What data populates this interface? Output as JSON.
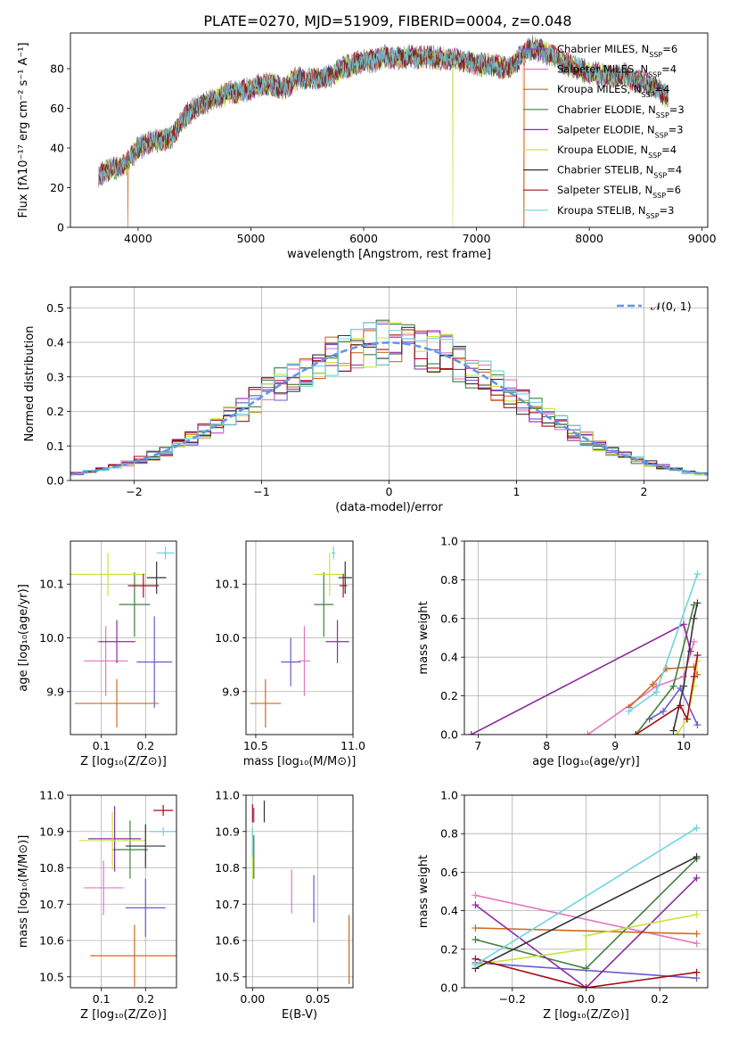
{
  "figure_title": "PLATE=0270, MJD=51909, FIBERID=0004, z=0.048",
  "colors": {
    "axis": "#000000",
    "grid": "#b0b0b0",
    "normal_curve": "#6495ed",
    "models": [
      "#6a5acd",
      "#e377c2",
      "#d2691e",
      "#3f7f3f",
      "#8e2ca0",
      "#c8e340",
      "#333333",
      "#a50f15",
      "#6fd4e0"
    ]
  },
  "chart_data": [
    {
      "id": "spectrum",
      "type": "line",
      "xlabel": "wavelength [Angstrom, rest frame]",
      "ylabel": "Flux [fλ10⁻¹⁷ erg cm⁻² s⁻¹ A⁻¹]",
      "xlim": [
        3400,
        9050
      ],
      "ylim": [
        0,
        98
      ],
      "xticks": [
        4000,
        5000,
        6000,
        7000,
        8000,
        9000
      ],
      "yticks": [
        0,
        20,
        40,
        60,
        80
      ],
      "grid": false,
      "legend_position": "right",
      "legend": [
        "Chabrier MILES, N_SSP=6",
        "Salpeter MILES, N_SSP=4",
        "Kroupa MILES, N_SSP=4",
        "Chabrier ELODIE, N_SSP=3",
        "Salpeter ELODIE, N_SSP=3",
        "Kroupa ELODIE, N_SSP=4",
        "Chabrier STELIB, N_SSP=4",
        "Salpeter STELIB, N_SSP=6",
        "Kroupa STELIB, N_SSP=3"
      ],
      "continuum": {
        "x": [
          3650,
          3700,
          3800,
          3900,
          4000,
          4100,
          4200,
          4300,
          4400,
          4500,
          4600,
          4700,
          4800,
          4900,
          5000,
          5100,
          5200,
          5300,
          5400,
          5500,
          5600,
          5700,
          5800,
          5900,
          6000,
          6100,
          6200,
          6300,
          6400,
          6500,
          6600,
          6700,
          6800,
          6900,
          7000,
          7100,
          7200,
          7300,
          7400,
          7500,
          7600,
          7700,
          7800,
          7900,
          8000,
          8100,
          8200,
          8300,
          8400,
          8500,
          8600,
          8700
        ],
        "y": [
          25,
          28,
          30,
          32,
          40,
          43,
          44,
          45,
          55,
          60,
          63,
          65,
          68,
          68,
          70,
          72,
          72,
          70,
          75,
          75,
          75,
          76,
          80,
          82,
          84,
          84,
          86,
          85,
          86,
          86,
          86,
          85,
          85,
          84,
          82,
          82,
          81,
          80,
          87,
          91,
          88,
          86,
          82,
          80,
          78,
          77,
          76,
          77,
          74,
          73,
          70,
          65
        ]
      },
      "dropouts": [
        {
          "x": 3910,
          "series": "Kroupa MILES"
        },
        {
          "x": 6790,
          "series": "Kroupa ELODIE"
        },
        {
          "x": 7420,
          "series": "Kroupa MILES"
        }
      ]
    },
    {
      "id": "residual-distribution",
      "type": "line",
      "xlabel": "(data-model)/error",
      "ylabel": "Normed distribution",
      "xlim": [
        -2.5,
        2.5
      ],
      "ylim": [
        0,
        0.56
      ],
      "xticks": [
        -2,
        -1,
        0,
        1,
        2
      ],
      "yticks": [
        0.0,
        0.1,
        0.2,
        0.3,
        0.4,
        0.5
      ],
      "grid": true,
      "legend_position": "top-right",
      "legend": [
        "𝒩(0, 1)"
      ],
      "histogram_bins": 50
    },
    {
      "id": "age-vs-Z",
      "type": "scatter",
      "xlabel": "Z [log₁₀(Z/Z⊙)]",
      "ylabel": "age  [log₁₀(age/yr)]",
      "xlim": [
        0.03,
        0.27
      ],
      "ylim": [
        9.82,
        10.18
      ],
      "xticks": [
        0.1,
        0.2
      ],
      "yticks": [
        9.9,
        10.0,
        10.1
      ],
      "grid": true,
      "points": [
        {
          "x": 0.22,
          "y": 9.955,
          "xerr": 0.04,
          "yerr": 0.085
        },
        {
          "x": 0.11,
          "y": 9.957,
          "xerr": 0.05,
          "yerr": 0.065
        },
        {
          "x": 0.135,
          "y": 9.878,
          "xerr": 0.095,
          "yerr": 0.045
        },
        {
          "x": 0.175,
          "y": 10.062,
          "xerr": 0.035,
          "yerr": 0.06
        },
        {
          "x": 0.135,
          "y": 9.993,
          "xerr": 0.042,
          "yerr": 0.04
        },
        {
          "x": 0.115,
          "y": 10.118,
          "xerr": 0.085,
          "yerr": 0.04
        },
        {
          "x": 0.225,
          "y": 10.112,
          "xerr": 0.022,
          "yerr": 0.03
        },
        {
          "x": 0.195,
          "y": 10.097,
          "xerr": 0.035,
          "yerr": 0.022
        },
        {
          "x": 0.245,
          "y": 10.158,
          "xerr": 0.02,
          "yerr": 0.012
        }
      ]
    },
    {
      "id": "age-vs-mass",
      "type": "scatter",
      "xlabel": "mass [log₁₀(M/M⊙)]",
      "ylabel": "",
      "xlim": [
        10.45,
        11.0
      ],
      "ylim": [
        9.82,
        10.18
      ],
      "xticks": [
        10.5,
        11.0
      ],
      "yticks": [
        9.9,
        10.0,
        10.1
      ],
      "grid": true,
      "points": [
        {
          "x": 10.68,
          "y": 9.955,
          "xerr": 0.05,
          "yerr": 0.045
        },
        {
          "x": 10.75,
          "y": 9.957,
          "xerr": 0.03,
          "yerr": 0.065
        },
        {
          "x": 10.55,
          "y": 9.878,
          "xerr": 0.08,
          "yerr": 0.045
        },
        {
          "x": 10.85,
          "y": 10.062,
          "xerr": 0.05,
          "yerr": 0.06
        },
        {
          "x": 10.92,
          "y": 9.993,
          "xerr": 0.06,
          "yerr": 0.04
        },
        {
          "x": 10.88,
          "y": 10.118,
          "xerr": 0.08,
          "yerr": 0.04
        },
        {
          "x": 10.96,
          "y": 10.112,
          "xerr": 0.035,
          "yerr": 0.03
        },
        {
          "x": 10.95,
          "y": 10.097,
          "xerr": 0.02,
          "yerr": 0.022
        },
        {
          "x": 10.9,
          "y": 10.158,
          "xerr": 0.01,
          "yerr": 0.012
        }
      ]
    },
    {
      "id": "massweight-vs-age",
      "type": "line",
      "xlabel": "age  [log₁₀(age/yr)]",
      "ylabel": "mass weight",
      "xlim": [
        6.8,
        10.35
      ],
      "ylim": [
        0,
        1.0
      ],
      "xticks": [
        7,
        8,
        9,
        10
      ],
      "yticks": [
        0.0,
        0.2,
        0.4,
        0.6,
        0.8,
        1.0
      ],
      "grid": true,
      "series": [
        {
          "x": [
            9.5,
            9.7,
            9.95,
            10.2
          ],
          "y": [
            0.08,
            0.12,
            0.24,
            0.05
          ]
        },
        {
          "x": [
            8.6,
            9.6,
            10.0,
            10.15
          ],
          "y": [
            0.0,
            0.25,
            0.3,
            0.48
          ]
        },
        {
          "x": [
            9.2,
            9.55,
            9.75,
            10.15,
            10.2
          ],
          "y": [
            0.14,
            0.26,
            0.34,
            0.35,
            0.31
          ]
        },
        {
          "x": [
            9.3,
            9.85,
            10.15
          ],
          "y": [
            0.0,
            0.25,
            0.67
          ]
        },
        {
          "x": [
            6.9,
            10.0,
            10.1
          ],
          "y": [
            0.0,
            0.57,
            0.43
          ]
        },
        {
          "x": [
            9.9,
            10.05,
            10.15,
            10.2
          ],
          "y": [
            0.0,
            0.08,
            0.25,
            0.38
          ]
        },
        {
          "x": [
            9.85,
            10.0,
            10.15,
            10.2
          ],
          "y": [
            0.02,
            0.25,
            0.6,
            0.68
          ]
        },
        {
          "x": [
            9.3,
            9.95,
            10.05,
            10.15,
            10.2
          ],
          "y": [
            0.0,
            0.15,
            0.08,
            0.3,
            0.41
          ]
        },
        {
          "x": [
            9.2,
            9.6,
            10.2
          ],
          "y": [
            0.12,
            0.22,
            0.83
          ]
        }
      ]
    },
    {
      "id": "mass-vs-Z",
      "type": "scatter",
      "xlabel": "Z [log₁₀(Z/Z⊙)]",
      "ylabel": "mass [log₁₀(M/M⊙)]",
      "xlim": [
        0.03,
        0.27
      ],
      "ylim": [
        10.47,
        11.0
      ],
      "xticks": [
        0.1,
        0.2
      ],
      "yticks": [
        10.5,
        10.6,
        10.7,
        10.8,
        10.9,
        11.0
      ],
      "grid": true,
      "points": [
        {
          "x": 0.2,
          "y": 10.69,
          "xerr": 0.045,
          "yerr": 0.08
        },
        {
          "x": 0.105,
          "y": 10.745,
          "xerr": 0.045,
          "yerr": 0.075
        },
        {
          "x": 0.175,
          "y": 10.558,
          "xerr": 0.1,
          "yerr": 0.085
        },
        {
          "x": 0.165,
          "y": 10.85,
          "xerr": 0.04,
          "yerr": 0.08
        },
        {
          "x": 0.13,
          "y": 10.88,
          "xerr": 0.06,
          "yerr": 0.09
        },
        {
          "x": 0.125,
          "y": 10.875,
          "xerr": 0.075,
          "yerr": 0.08
        },
        {
          "x": 0.2,
          "y": 10.86,
          "xerr": 0.045,
          "yerr": 0.06
        },
        {
          "x": 0.24,
          "y": 10.958,
          "xerr": 0.022,
          "yerr": 0.015
        },
        {
          "x": 0.24,
          "y": 10.9,
          "xerr": 0.03,
          "yerr": 0.012
        }
      ]
    },
    {
      "id": "mass-vs-EBV",
      "type": "scatter",
      "xlabel": "E(B-V)",
      "ylabel": "",
      "xlim": [
        -0.005,
        0.077
      ],
      "ylim": [
        10.47,
        11.0
      ],
      "xticks": [
        0.0,
        0.05
      ],
      "yticks": [
        10.5,
        10.6,
        10.7,
        10.8,
        10.9,
        11.0
      ],
      "grid": true,
      "points": [
        {
          "x": 0.047,
          "y": 10.715,
          "xerr": 0,
          "yerr": 0.065
        },
        {
          "x": 0.03,
          "y": 10.735,
          "xerr": 0,
          "yerr": 0.06
        },
        {
          "x": 0.074,
          "y": 10.575,
          "xerr": 0,
          "yerr": 0.095
        },
        {
          "x": 0.001,
          "y": 10.83,
          "xerr": 0,
          "yerr": 0.06
        },
        {
          "x": 0.001,
          "y": 10.945,
          "xerr": 0,
          "yerr": 0.02
        },
        {
          "x": 0.0,
          "y": 10.84,
          "xerr": 0,
          "yerr": 0.07
        },
        {
          "x": 0.009,
          "y": 10.955,
          "xerr": 0,
          "yerr": 0.03
        },
        {
          "x": 0.0,
          "y": 10.95,
          "xerr": 0,
          "yerr": 0.025
        },
        {
          "x": 0.0,
          "y": 10.87,
          "xerr": 0,
          "yerr": 0.04
        }
      ]
    },
    {
      "id": "massweight-vs-Z",
      "type": "line",
      "xlabel": "Z [log₁₀(Z/Z⊙)]",
      "ylabel": "mass weight",
      "xlim": [
        -0.33,
        0.33
      ],
      "ylim": [
        0,
        1.0
      ],
      "xticks": [
        -0.2,
        0.0,
        0.2
      ],
      "yticks": [
        0.0,
        0.2,
        0.4,
        0.6,
        0.8,
        1.0
      ],
      "grid": true,
      "series": [
        {
          "x": [
            -0.3,
            0.3
          ],
          "y": [
            0.13,
            0.05
          ]
        },
        {
          "x": [
            -0.3,
            0.3
          ],
          "y": [
            0.48,
            0.23
          ]
        },
        {
          "x": [
            -0.3,
            0.3
          ],
          "y": [
            0.31,
            0.28
          ]
        },
        {
          "x": [
            -0.3,
            0.0,
            0.3
          ],
          "y": [
            0.25,
            0.1,
            0.67
          ]
        },
        {
          "x": [
            -0.3,
            0.0,
            0.3
          ],
          "y": [
            0.43,
            0.0,
            0.57
          ]
        },
        {
          "x": [
            -0.3,
            0.0,
            0.0,
            0.3
          ],
          "y": [
            0.12,
            0.2,
            0.27,
            0.38
          ]
        },
        {
          "x": [
            -0.3,
            0.3
          ],
          "y": [
            0.1,
            0.68
          ]
        },
        {
          "x": [
            -0.3,
            0.0,
            0.3
          ],
          "y": [
            0.15,
            0.0,
            0.08
          ]
        },
        {
          "x": [
            -0.3,
            0.3
          ],
          "y": [
            0.12,
            0.83
          ]
        }
      ]
    }
  ]
}
